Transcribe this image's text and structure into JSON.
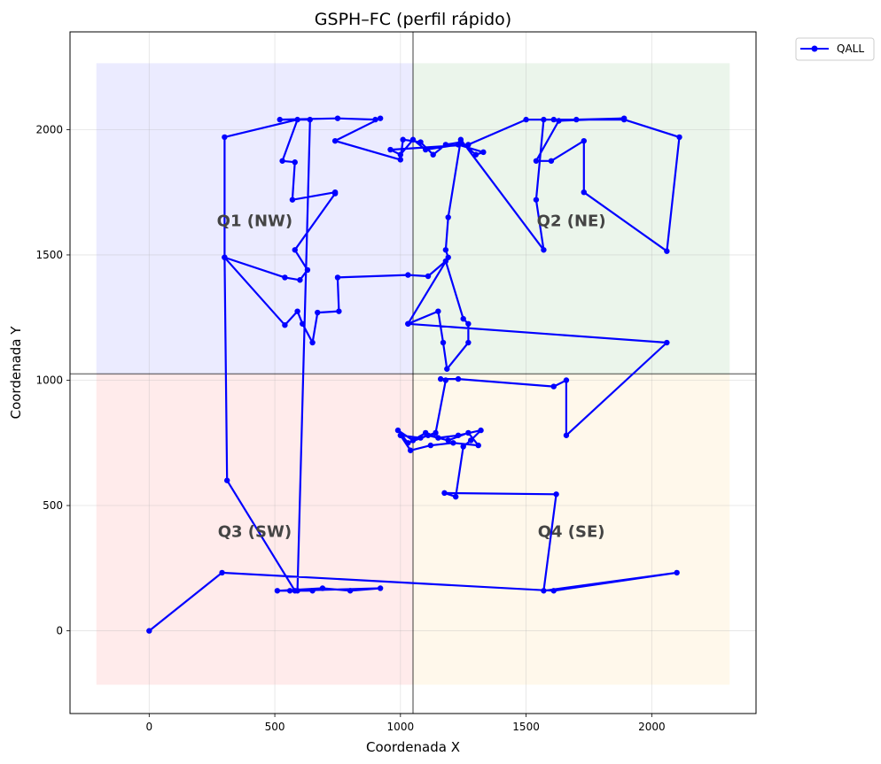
{
  "chart_data": {
    "type": "line",
    "title": "GSPH–FC (perfil rápido)",
    "xlabel": "Coordenada X",
    "ylabel": "Coordenada Y",
    "xlim": [
      -315,
      2415
    ],
    "ylim": [
      -330,
      2390
    ],
    "xticks": [
      0,
      500,
      1000,
      1500,
      2000,
      2500
    ],
    "yticks": [
      0,
      500,
      1000,
      1500,
      2000,
      2500
    ],
    "grid": true,
    "legend_position": "outside-top-right",
    "center_lines": {
      "x": 1050,
      "y": 1025
    },
    "quadrants": [
      {
        "label": "Q1 (NW)",
        "x": [
          -210,
          1050
        ],
        "y": [
          1025,
          2265
        ],
        "color": "#0000ff",
        "label_at": [
          420,
          1640
        ]
      },
      {
        "label": "Q2 (NE)",
        "x": [
          1050,
          2310
        ],
        "y": [
          1025,
          2265
        ],
        "color": "#008000",
        "label_at": [
          1680,
          1640
        ]
      },
      {
        "label": "Q3 (SW)",
        "x": [
          -210,
          1050
        ],
        "y": [
          -215,
          1025
        ],
        "color": "#ff0000",
        "label_at": [
          420,
          400
        ]
      },
      {
        "label": "Q4 (SE)",
        "x": [
          1050,
          2310
        ],
        "y": [
          -215,
          1025
        ],
        "color": "#ffa500",
        "label_at": [
          1680,
          400
        ]
      }
    ],
    "series": [
      {
        "name": "QALL",
        "color": "#0000ff",
        "points": [
          [
            0,
            0
          ],
          [
            290,
            232
          ],
          [
            1610,
            160
          ],
          [
            2100,
            232
          ],
          [
            1570,
            160
          ],
          [
            1620,
            545
          ],
          [
            1175,
            550
          ],
          [
            1220,
            535
          ],
          [
            1250,
            735
          ],
          [
            1280,
            760
          ],
          [
            1320,
            800
          ],
          [
            1230,
            780
          ],
          [
            1150,
            770
          ],
          [
            1100,
            790
          ],
          [
            1050,
            760
          ],
          [
            990,
            800
          ],
          [
            1030,
            750
          ],
          [
            1110,
            780
          ],
          [
            1190,
            760
          ],
          [
            1270,
            790
          ],
          [
            1310,
            740
          ],
          [
            1210,
            750
          ],
          [
            1120,
            740
          ],
          [
            1040,
            720
          ],
          [
            1000,
            780
          ],
          [
            1080,
            770
          ],
          [
            1140,
            790
          ],
          [
            1180,
            1000
          ],
          [
            1160,
            1005
          ],
          [
            1230,
            1005
          ],
          [
            1610,
            975
          ],
          [
            1660,
            1000
          ],
          [
            1660,
            780
          ],
          [
            2060,
            1150
          ],
          [
            1030,
            1225
          ],
          [
            1150,
            1275
          ],
          [
            1170,
            1150
          ],
          [
            1185,
            1045
          ],
          [
            1270,
            1150
          ],
          [
            1270,
            1225
          ],
          [
            1250,
            1245
          ],
          [
            1180,
            1475
          ],
          [
            1110,
            1415
          ],
          [
            1030,
            1420
          ],
          [
            750,
            1410
          ],
          [
            755,
            1275
          ],
          [
            670,
            1270
          ],
          [
            650,
            1150
          ],
          [
            610,
            1225
          ],
          [
            590,
            1275
          ],
          [
            540,
            1220
          ],
          [
            300,
            1490
          ],
          [
            540,
            1410
          ],
          [
            600,
            1400
          ],
          [
            630,
            1440
          ],
          [
            580,
            1520
          ],
          [
            740,
            1745
          ],
          [
            740,
            1750
          ],
          [
            570,
            1720
          ],
          [
            580,
            1870
          ],
          [
            530,
            1875
          ],
          [
            590,
            2040
          ],
          [
            300,
            1970
          ],
          [
            300,
            1490
          ],
          [
            310,
            600
          ],
          [
            580,
            160
          ],
          [
            510,
            160
          ],
          [
            690,
            170
          ],
          [
            800,
            160
          ],
          [
            920,
            170
          ],
          [
            560,
            160
          ],
          [
            650,
            160
          ],
          [
            590,
            160
          ],
          [
            640,
            2040
          ],
          [
            520,
            2040
          ],
          [
            750,
            2045
          ],
          [
            900,
            2040
          ],
          [
            920,
            2045
          ],
          [
            740,
            1955
          ],
          [
            1000,
            1880
          ],
          [
            1010,
            1960
          ],
          [
            1080,
            1950
          ],
          [
            1130,
            1900
          ],
          [
            1180,
            1940
          ],
          [
            1240,
            1950
          ],
          [
            1300,
            1900
          ],
          [
            1330,
            1910
          ],
          [
            1230,
            1940
          ],
          [
            1100,
            1920
          ],
          [
            1050,
            1960
          ],
          [
            1000,
            1900
          ],
          [
            960,
            1920
          ],
          [
            1270,
            1940
          ],
          [
            1500,
            2040
          ],
          [
            1610,
            2040
          ],
          [
            1700,
            2040
          ],
          [
            1890,
            2045
          ],
          [
            1630,
            2035
          ],
          [
            1540,
            1875
          ],
          [
            1600,
            1875
          ],
          [
            1730,
            1955
          ],
          [
            1730,
            1750
          ],
          [
            2060,
            1515
          ],
          [
            2110,
            1970
          ],
          [
            1890,
            2040
          ],
          [
            1570,
            2040
          ],
          [
            1540,
            1720
          ],
          [
            1570,
            1520
          ],
          [
            1240,
            1960
          ],
          [
            1190,
            1650
          ],
          [
            1180,
            1520
          ],
          [
            1190,
            1490
          ],
          [
            1030,
            1225
          ]
        ]
      }
    ]
  }
}
